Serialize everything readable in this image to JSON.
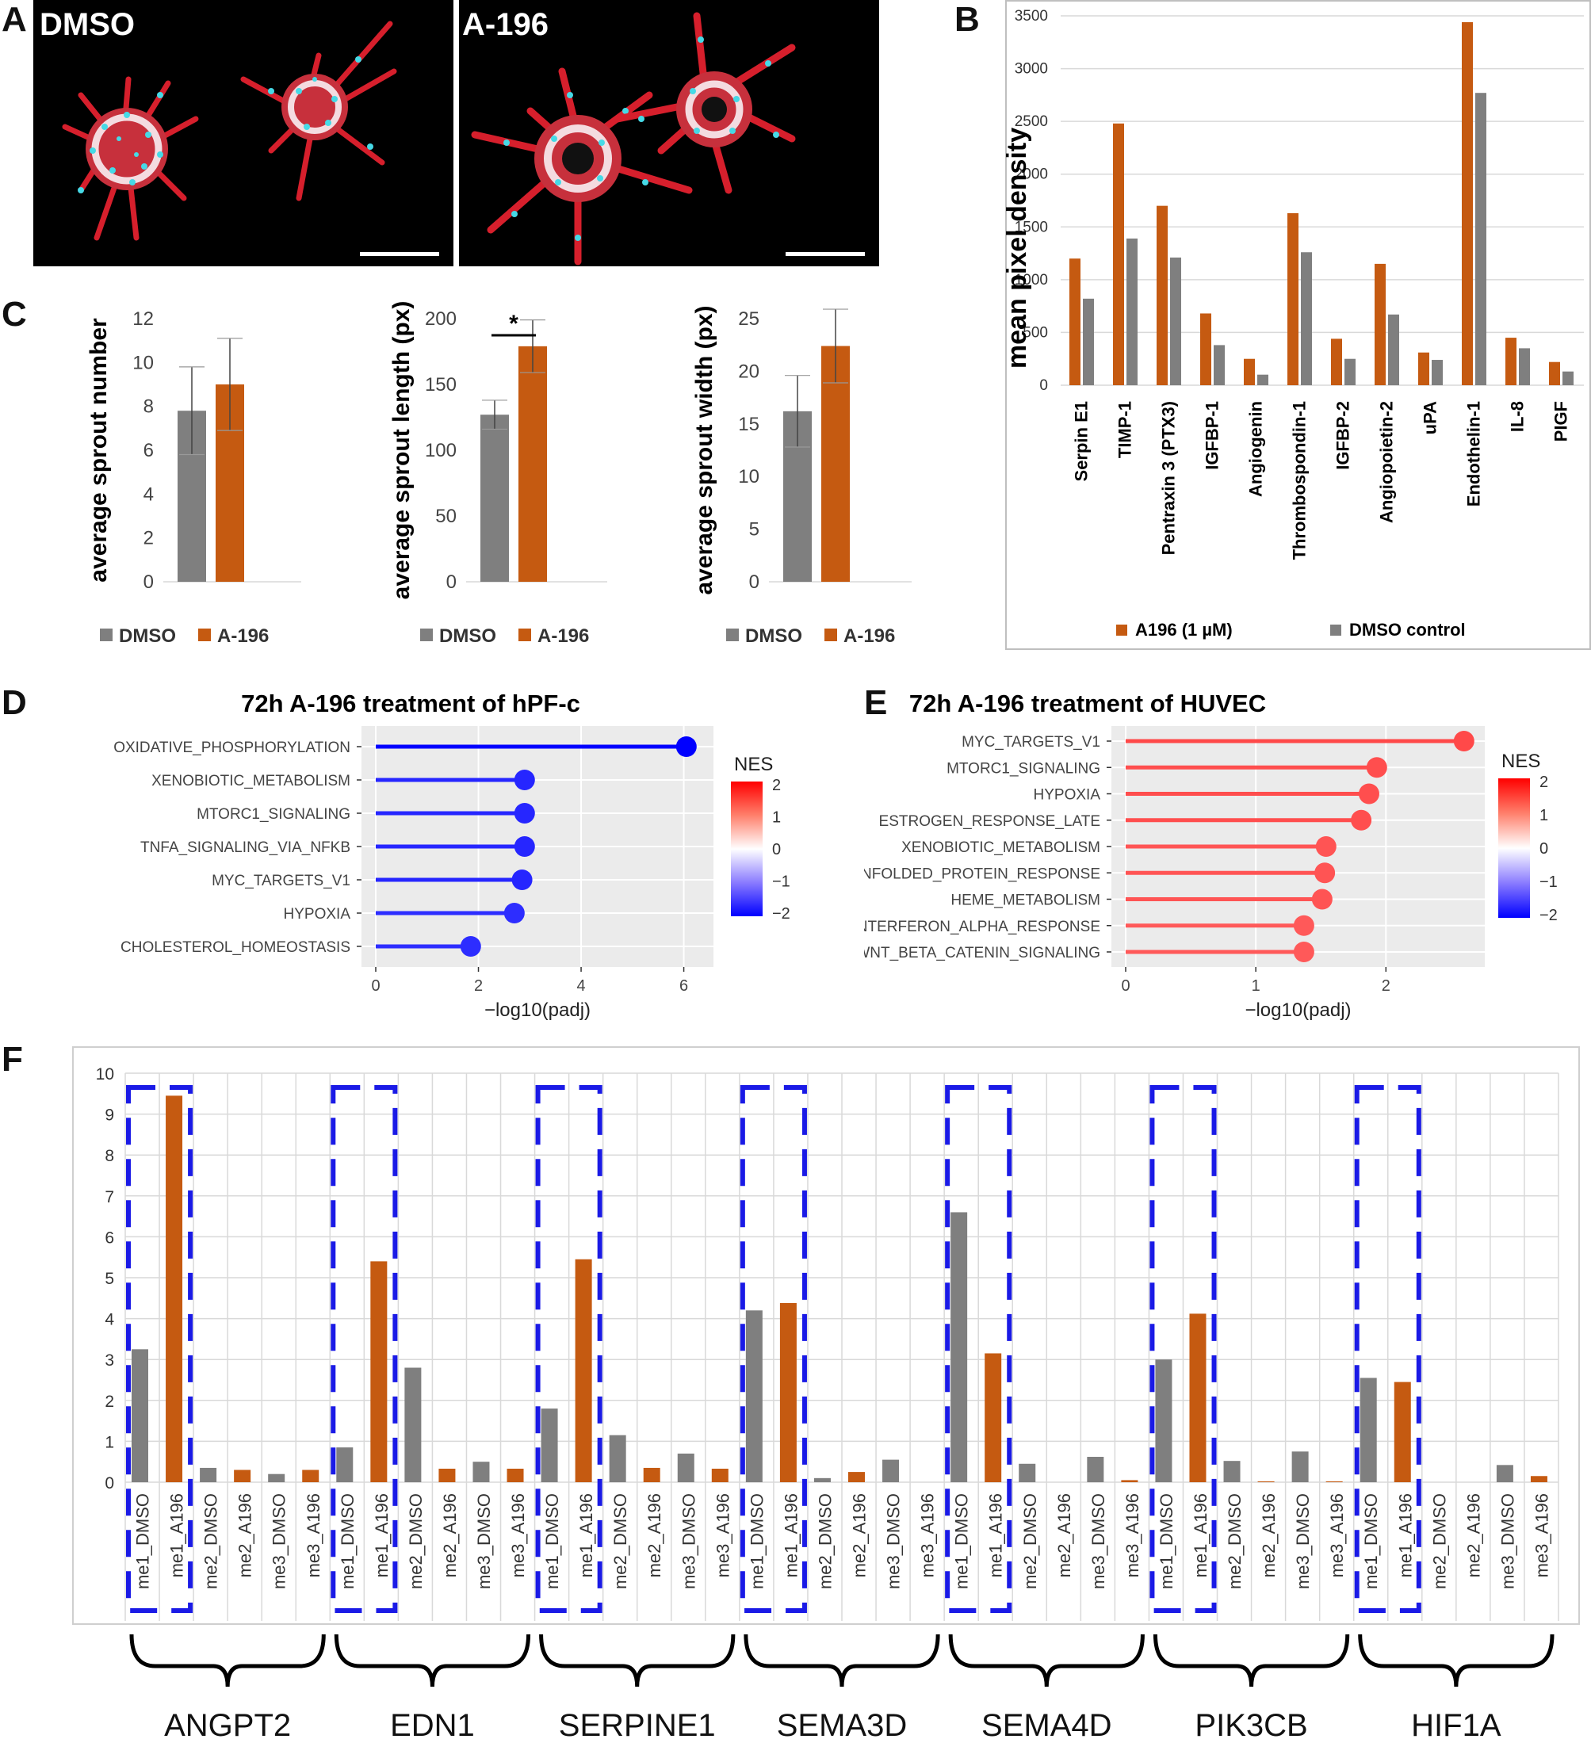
{
  "panel_labels": {
    "A": "A",
    "B": "B",
    "C": "C",
    "D": "D",
    "E": "E",
    "F": "F"
  },
  "panel_a": {
    "images": [
      {
        "label": "DMSO"
      },
      {
        "label": "A-196"
      }
    ],
    "colors": {
      "background": "#000000",
      "actin": "#d61f2c",
      "nuclei": "#46d9e6"
    }
  },
  "chart_data": [
    {
      "id": "B",
      "type": "bar",
      "ylabel": "mean pixel density",
      "ylim": [
        0,
        3500
      ],
      "yticks": [
        0,
        500,
        1000,
        1500,
        2000,
        2500,
        3000,
        3500
      ],
      "grid": true,
      "legend_position": "bottom",
      "categories": [
        "Serpin E1",
        "TIMP-1",
        "Pentraxin 3 (PTX3)",
        "IGFBP-1",
        "Angiogenin",
        "Thrombospondin-1",
        "IGFBP-2",
        "Angiopoietin-2",
        "uPA",
        "Endothelin-1",
        "IL-8",
        "PIGF"
      ],
      "series": [
        {
          "name": "A196 (1 µM)",
          "color": "#c55a11",
          "values": [
            1200,
            2480,
            1700,
            680,
            250,
            1630,
            440,
            1150,
            310,
            3440,
            450,
            220
          ]
        },
        {
          "name": "DMSO control",
          "color": "#7f7f7f",
          "values": [
            820,
            1390,
            1210,
            380,
            100,
            1260,
            250,
            670,
            240,
            2770,
            350,
            130
          ]
        }
      ]
    },
    {
      "id": "C1",
      "type": "bar",
      "ylabel": "average sprout number",
      "ylim": [
        0,
        12
      ],
      "yticks": [
        0,
        2,
        4,
        6,
        8,
        10,
        12
      ],
      "legend_position": "bottom",
      "categories": [
        "DMSO",
        "A-196"
      ],
      "colors": [
        "#7f7f7f",
        "#c55a11"
      ],
      "values": [
        7.8,
        9.0
      ],
      "errors": [
        2.0,
        2.1
      ]
    },
    {
      "id": "C2",
      "type": "bar",
      "ylabel": "average sprout length (px)",
      "ylim": [
        0,
        200
      ],
      "yticks": [
        0,
        50,
        100,
        150,
        200
      ],
      "legend_position": "bottom",
      "categories": [
        "DMSO",
        "A-196"
      ],
      "colors": [
        "#7f7f7f",
        "#c55a11"
      ],
      "values": [
        127,
        179
      ],
      "errors": [
        11,
        20
      ],
      "annotation": "*"
    },
    {
      "id": "C3",
      "type": "bar",
      "ylabel": "average sprout width (px)",
      "ylim": [
        0,
        25
      ],
      "yticks": [
        0,
        5,
        10,
        15,
        20,
        25
      ],
      "legend_position": "bottom",
      "categories": [
        "DMSO",
        "A-196"
      ],
      "colors": [
        "#7f7f7f",
        "#c55a11"
      ],
      "values": [
        16.2,
        22.4
      ],
      "errors": [
        3.4,
        3.5
      ]
    },
    {
      "id": "D",
      "type": "scatter",
      "title": "72h A-196 treatment of hPF-c",
      "xlabel": "−log10(padj)",
      "xlim": [
        0,
        6.3
      ],
      "xticks": [
        0,
        2,
        4,
        6
      ],
      "legend_title": "NES",
      "legend_ticks": [
        "2",
        "1",
        "0",
        "−1",
        "−2"
      ],
      "legend_position": "right",
      "categories": [
        "OXIDATIVE_PHOSPHORYLATION",
        "XENOBIOTIC_METABOLISM",
        "MTORC1_SIGNALING",
        "TNFA_SIGNALING_VIA_NFKB",
        "MYC_TARGETS_V1",
        "HYPOXIA",
        "CHOLESTEROL_HOMEOSTASIS"
      ],
      "x": [
        6.05,
        2.9,
        2.9,
        2.9,
        2.85,
        2.7,
        1.85
      ],
      "nes": [
        -2.0,
        -1.7,
        -1.7,
        -1.7,
        -1.7,
        -1.65,
        -1.65
      ]
    },
    {
      "id": "E",
      "type": "scatter",
      "title": "72h A-196 treatment of HUVEC",
      "xlabel": "−log10(padj)",
      "xlim": [
        0,
        2.65
      ],
      "xticks": [
        0,
        1,
        2
      ],
      "legend_title": "NES",
      "legend_ticks": [
        "2",
        "1",
        "0",
        "−1",
        "−2"
      ],
      "legend_position": "right",
      "categories": [
        "MYC_TARGETS_V1",
        "MTORC1_SIGNALING",
        "HYPOXIA",
        "ESTROGEN_RESPONSE_LATE",
        "XENOBIOTIC_METABOLISM",
        "UNFOLDED_PROTEIN_RESPONSE",
        "HEME_METABOLISM",
        "INTERFERON_ALPHA_RESPONSE",
        "WNT_BETA_CATENIN_SIGNALING"
      ],
      "x": [
        2.6,
        1.93,
        1.87,
        1.81,
        1.54,
        1.53,
        1.51,
        1.37,
        1.37
      ],
      "nes": [
        1.65,
        1.6,
        1.6,
        1.6,
        1.55,
        1.55,
        1.55,
        1.5,
        1.5
      ]
    },
    {
      "id": "F",
      "type": "bar",
      "ylim": [
        0,
        10
      ],
      "yticks": [
        0,
        1,
        2,
        3,
        4,
        5,
        6,
        7,
        8,
        9,
        10
      ],
      "grid": true,
      "categories": [
        "me1_DMSO",
        "me1_A196",
        "me2_DMSO",
        "me2_A196",
        "me3_DMSO",
        "me3_A196"
      ],
      "bar_colors": [
        "#7f7f7f",
        "#c55a11",
        "#7f7f7f",
        "#c55a11",
        "#7f7f7f",
        "#c55a11"
      ],
      "groups": [
        {
          "gene": "ANGPT2",
          "values": [
            3.25,
            9.45,
            0.35,
            0.3,
            0.2,
            0.3
          ]
        },
        {
          "gene": "EDN1",
          "values": [
            0.85,
            5.4,
            2.8,
            0.33,
            0.5,
            0.33
          ]
        },
        {
          "gene": "SERPINE1",
          "values": [
            1.8,
            5.45,
            1.15,
            0.35,
            0.7,
            0.33
          ]
        },
        {
          "gene": "SEMA3D",
          "values": [
            4.2,
            4.38,
            0.1,
            0.25,
            0.55,
            0
          ]
        },
        {
          "gene": "SEMA4D",
          "values": [
            6.6,
            3.15,
            0.45,
            0,
            0.62,
            0.05
          ]
        },
        {
          "gene": "PIK3CB",
          "values": [
            3.0,
            4.12,
            0.52,
            0.02,
            0.75,
            0.02
          ]
        },
        {
          "gene": "HIF1A",
          "values": [
            2.55,
            2.45,
            0,
            0,
            0.42,
            0.15
          ]
        }
      ],
      "highlight_color": "#1a1ae6"
    }
  ]
}
